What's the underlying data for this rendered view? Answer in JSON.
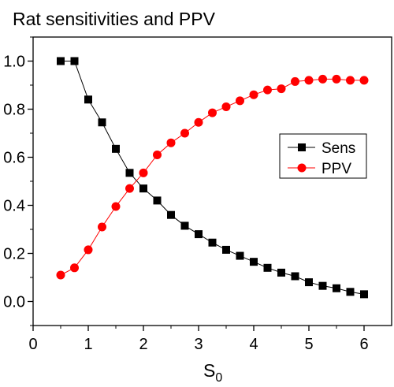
{
  "chart_data": {
    "type": "line",
    "title": "Rat sensitivities and PPV",
    "xlabel_main": "S",
    "xlabel_sub": "0",
    "ylabel": "",
    "xlim": [
      0,
      6.5
    ],
    "ylim": [
      -0.1,
      1.1
    ],
    "xticks": [
      "0",
      "1",
      "2",
      "3",
      "4",
      "5",
      "6"
    ],
    "yticks": [
      "0.0",
      "0.2",
      "0.4",
      "0.6",
      "0.8",
      "1.0"
    ],
    "x": [
      0.5,
      0.75,
      1.0,
      1.25,
      1.5,
      1.75,
      2.0,
      2.25,
      2.5,
      2.75,
      3.0,
      3.25,
      3.5,
      3.75,
      4.0,
      4.25,
      4.5,
      4.75,
      5.0,
      5.25,
      5.5,
      5.75,
      6.0
    ],
    "series": [
      {
        "name": "Sens",
        "color": "#000000",
        "marker": "square",
        "values": [
          1.0,
          1.0,
          0.84,
          0.745,
          0.635,
          0.535,
          0.47,
          0.42,
          0.36,
          0.315,
          0.28,
          0.245,
          0.215,
          0.19,
          0.165,
          0.14,
          0.12,
          0.105,
          0.08,
          0.065,
          0.055,
          0.04,
          0.03
        ]
      },
      {
        "name": "PPV",
        "color": "#ff0000",
        "marker": "circle",
        "values": [
          0.11,
          0.14,
          0.215,
          0.31,
          0.395,
          0.47,
          0.535,
          0.61,
          0.66,
          0.7,
          0.745,
          0.785,
          0.81,
          0.835,
          0.86,
          0.88,
          0.885,
          0.915,
          0.92,
          0.925,
          0.925,
          0.92,
          0.92
        ]
      }
    ],
    "legend_position": "center-right",
    "grid": false
  }
}
